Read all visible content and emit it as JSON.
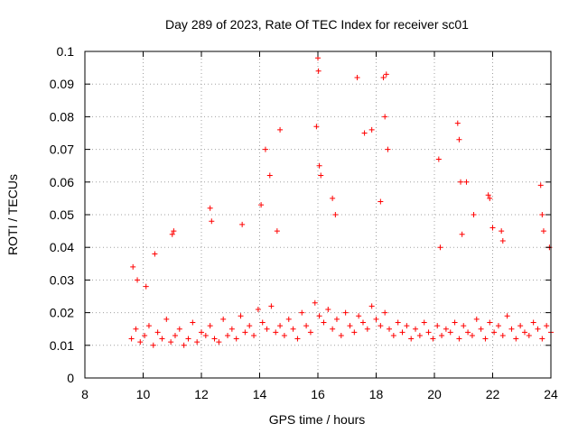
{
  "chart_data": {
    "type": "scatter",
    "title": "Day 289 of 2023, Rate Of TEC Index for receiver sc01",
    "xlabel": "GPS time / hours",
    "ylabel": "ROTI / TECUs",
    "xlim": [
      8,
      24
    ],
    "ylim": [
      0,
      0.1
    ],
    "x_ticks": [
      "8",
      "10",
      "12",
      "14",
      "16",
      "18",
      "20",
      "22",
      "24"
    ],
    "y_ticks": [
      "0",
      "0.01",
      "0.02",
      "0.03",
      "0.04",
      "0.05",
      "0.06",
      "0.07",
      "0.08",
      "0.09",
      "0.1"
    ],
    "grid": true,
    "marker": "plus",
    "color": "#ff0000",
    "series": [
      {
        "x": [
          9.6,
          9.75,
          9.9,
          10.05,
          10.2,
          10.35,
          10.5,
          10.65,
          10.8,
          10.95,
          11.1,
          11.25,
          11.4,
          11.55,
          11.7,
          11.85,
          12.0,
          12.15,
          12.3,
          12.45,
          12.6,
          12.75,
          12.9,
          13.05,
          13.2,
          13.35,
          13.5,
          13.65,
          13.8,
          13.95,
          14.1,
          14.25,
          14.4,
          14.55,
          14.7,
          14.85,
          15.0,
          15.15,
          15.3,
          15.45,
          15.6,
          15.75,
          15.9,
          16.05,
          16.2,
          16.35,
          16.5,
          16.65,
          16.8,
          16.95,
          17.1,
          17.25,
          17.4,
          17.55,
          17.7,
          17.85,
          18.0,
          18.15,
          18.3,
          18.45,
          18.6,
          18.75,
          18.9,
          19.05,
          19.2,
          19.35,
          19.5,
          19.65,
          19.8,
          19.95,
          20.1,
          20.25,
          20.4,
          20.55,
          20.7,
          20.85,
          21.0,
          21.15,
          21.3,
          21.45,
          21.6,
          21.75,
          21.9,
          22.05,
          22.2,
          22.35,
          22.5,
          22.65,
          22.8,
          22.95,
          23.1,
          23.25,
          23.4,
          23.55,
          23.7,
          23.85,
          24.0,
          9.65,
          9.8,
          10.1,
          10.4,
          11.0,
          11.05,
          12.3,
          12.35,
          13.4,
          14.05,
          14.2,
          14.35,
          14.6,
          14.7,
          15.95,
          16.0,
          16.02,
          16.05,
          16.1,
          16.5,
          16.6,
          17.35,
          17.6,
          17.85,
          18.15,
          18.25,
          18.3,
          18.35,
          18.4,
          20.15,
          20.2,
          20.8,
          20.85,
          20.9,
          20.95,
          21.1,
          21.35,
          21.85,
          21.9,
          22.0,
          22.3,
          22.35,
          23.65,
          23.7,
          23.75,
          23.95
        ],
        "y": [
          0.012,
          0.015,
          0.011,
          0.013,
          0.016,
          0.01,
          0.014,
          0.012,
          0.018,
          0.011,
          0.013,
          0.015,
          0.01,
          0.012,
          0.017,
          0.011,
          0.014,
          0.013,
          0.016,
          0.012,
          0.011,
          0.018,
          0.013,
          0.015,
          0.012,
          0.019,
          0.014,
          0.016,
          0.013,
          0.021,
          0.017,
          0.015,
          0.022,
          0.014,
          0.016,
          0.013,
          0.018,
          0.015,
          0.012,
          0.02,
          0.016,
          0.014,
          0.023,
          0.019,
          0.017,
          0.021,
          0.015,
          0.018,
          0.013,
          0.02,
          0.016,
          0.014,
          0.019,
          0.017,
          0.015,
          0.022,
          0.018,
          0.016,
          0.02,
          0.015,
          0.013,
          0.017,
          0.014,
          0.016,
          0.012,
          0.015,
          0.013,
          0.017,
          0.014,
          0.012,
          0.016,
          0.013,
          0.015,
          0.014,
          0.017,
          0.012,
          0.016,
          0.014,
          0.013,
          0.018,
          0.015,
          0.012,
          0.017,
          0.014,
          0.016,
          0.013,
          0.019,
          0.015,
          0.012,
          0.016,
          0.014,
          0.013,
          0.017,
          0.015,
          0.012,
          0.016,
          0.014,
          0.034,
          0.03,
          0.028,
          0.038,
          0.044,
          0.045,
          0.052,
          0.048,
          0.047,
          0.053,
          0.07,
          0.062,
          0.045,
          0.076,
          0.077,
          0.098,
          0.094,
          0.065,
          0.062,
          0.055,
          0.05,
          0.092,
          0.075,
          0.076,
          0.054,
          0.092,
          0.08,
          0.093,
          0.07,
          0.067,
          0.04,
          0.078,
          0.073,
          0.06,
          0.044,
          0.06,
          0.05,
          0.056,
          0.055,
          0.046,
          0.045,
          0.042,
          0.059,
          0.05,
          0.045,
          0.04
        ]
      }
    ]
  }
}
